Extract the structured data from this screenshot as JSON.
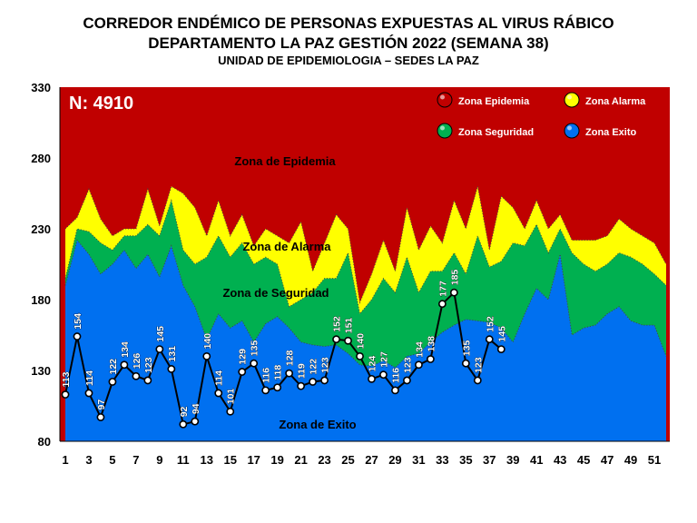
{
  "title_lines": [
    "CORREDOR ENDÉMICO DE PERSONAS EXPUESTAS AL VIRUS RÁBICO",
    "DEPARTAMENTO  LA PAZ GESTIÓN 2022 (SEMANA 38)",
    "UNIDAD DE EPIDEMIOLOGIA – SEDES LA PAZ"
  ],
  "n_label": "N: 4910",
  "zones": {
    "epidemia": "Zona de Epidemia",
    "alarma": "Zona de Alarma",
    "seguridad": "Zona de Seguridad",
    "exito": "Zona de Exito"
  },
  "legend": [
    {
      "label": "Zona Epidemia",
      "color": "#c00000"
    },
    {
      "label": "Zona Alarma",
      "color": "#ffff00"
    },
    {
      "label": "Zona Seguridad",
      "color": "#00b050"
    },
    {
      "label": "Zona Exito",
      "color": "#0070f0"
    }
  ],
  "chart_data": {
    "type": "area",
    "ylim": [
      80,
      330
    ],
    "y_ticks": [
      80,
      130,
      180,
      230,
      280,
      330
    ],
    "x_tick_labels": [
      "1",
      "3",
      "5",
      "7",
      "9",
      "11",
      "13",
      "15",
      "17",
      "19",
      "21",
      "23",
      "25",
      "27",
      "29",
      "31",
      "33",
      "35",
      "37",
      "39",
      "41",
      "43",
      "45",
      "47",
      "49",
      "51"
    ],
    "weeks": [
      1,
      2,
      3,
      4,
      5,
      6,
      7,
      8,
      9,
      10,
      11,
      12,
      13,
      14,
      15,
      16,
      17,
      18,
      19,
      20,
      21,
      22,
      23,
      24,
      25,
      26,
      27,
      28,
      29,
      30,
      31,
      32,
      33,
      34,
      35,
      36,
      37,
      38,
      39,
      40,
      41,
      42,
      43,
      44,
      45,
      46,
      47,
      48,
      49,
      50,
      51,
      52
    ],
    "colors": {
      "epidemia": "#c00000",
      "alarma": "#ffff00",
      "seguridad": "#00b050",
      "exito": "#0070f0",
      "line": "#000000"
    },
    "exito_upper": [
      190,
      222,
      212,
      198,
      205,
      215,
      202,
      212,
      196,
      218,
      190,
      175,
      152,
      170,
      160,
      165,
      150,
      163,
      168,
      160,
      150,
      148,
      147,
      148,
      142,
      134,
      133,
      137,
      132,
      140,
      142,
      150,
      157,
      162,
      166,
      165,
      164,
      160,
      150,
      170,
      188,
      180,
      212,
      155,
      160,
      162,
      170,
      175,
      165,
      162,
      162,
      140
    ],
    "seguridad_upper": [
      195,
      230,
      228,
      220,
      215,
      225,
      225,
      233,
      225,
      250,
      215,
      205,
      210,
      225,
      210,
      220,
      205,
      210,
      205,
      175,
      180,
      185,
      195,
      195,
      213,
      170,
      180,
      195,
      185,
      210,
      185,
      200,
      200,
      213,
      198,
      225,
      203,
      207,
      220,
      218,
      233,
      213,
      230,
      213,
      205,
      200,
      205,
      213,
      210,
      205,
      198,
      190
    ],
    "alarma_upper": [
      230,
      238,
      258,
      237,
      225,
      230,
      230,
      258,
      232,
      260,
      255,
      245,
      225,
      250,
      225,
      240,
      218,
      230,
      225,
      220,
      235,
      200,
      220,
      240,
      230,
      178,
      198,
      222,
      200,
      245,
      215,
      232,
      220,
      250,
      230,
      260,
      215,
      253,
      245,
      230,
      250,
      230,
      240,
      222,
      222,
      222,
      225,
      237,
      230,
      225,
      220,
      205
    ],
    "series": [
      {
        "name": "",
        "x": [
          1,
          2,
          3,
          4,
          5,
          6,
          7,
          8,
          9,
          10,
          11,
          12,
          13,
          14,
          15,
          16,
          17,
          18,
          19,
          20,
          21,
          22,
          23,
          24,
          25,
          26,
          27,
          28,
          29,
          30,
          31,
          32,
          33,
          34,
          35,
          36,
          37,
          38
        ],
        "values": [
          113,
          154,
          114,
          97,
          122,
          134,
          126,
          123,
          145,
          131,
          92,
          94,
          140,
          114,
          101,
          129,
          135,
          116,
          118,
          128,
          119,
          122,
          123,
          152,
          151,
          140,
          124,
          127,
          116,
          123,
          134,
          138,
          177,
          185,
          135,
          123,
          152,
          145
        ]
      }
    ]
  }
}
